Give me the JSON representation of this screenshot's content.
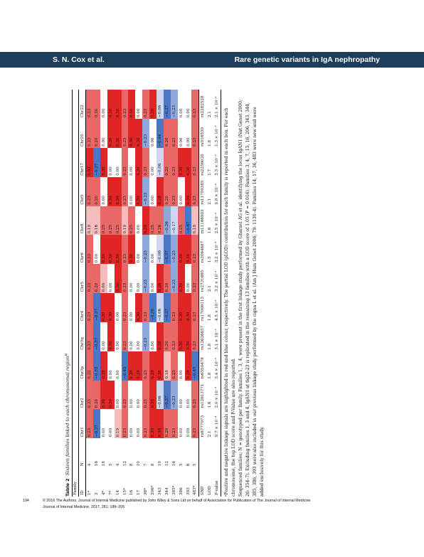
{
  "header": {
    "left": "S. N. Cox et al.",
    "right": "Rare genetic variants in IgA nephropathy"
  },
  "caption": {
    "label": "Table 2",
    "text": "Sixteen families linked to each chromosomal region",
    "sup": "a"
  },
  "table": {
    "family_label": "Family",
    "columns": [
      "ID",
      "N",
      "Chr1",
      "Chr2",
      "Chr3p",
      "Chr3q",
      "Chr4",
      "Chr5",
      "Chr6",
      "Chr8",
      "Chr9",
      "Chr17",
      "Chr20",
      "Chr22"
    ],
    "rows": [
      {
        "id": "1*",
        "n": "4",
        "v": [
          "0.23",
          "0.23",
          "0.22",
          "0.23",
          "0.23",
          "0.23",
          "0.23",
          "0.19",
          "0.23",
          "0.53",
          "0.23",
          "0.23"
        ]
      },
      {
        "id": "3",
        "n": "16",
        "v": [
          "−0.37",
          "0.20",
          "−0.32",
          "−0.37",
          "−0.37",
          "0.20",
          "0.00",
          "0.16",
          "0.20",
          "−0.37",
          "0.20",
          "0.20"
        ]
      },
      {
        "id": "4*",
        "n": "18",
        "v": [
          "0.00",
          "0.30",
          "0.28",
          "0.00",
          "0.30",
          "0.09",
          "0.30",
          "0.25",
          "0.00",
          "0.30",
          "0.00",
          "0.00"
        ]
      },
      {
        "id": "7*",
        "n": "5",
        "v": [
          "0.00",
          "0.30",
          "0.00",
          "0.30",
          "0.30",
          "0.00",
          "0.30",
          "0.25",
          "0.30",
          "0.00",
          "0.30",
          "0.30"
        ]
      },
      {
        "id": "14",
        "n": "4",
        "v": [
          "0.19",
          "0.00",
          "0.00",
          "0.00",
          "0.00",
          "0.30",
          "0.30",
          "0.25",
          "0.30",
          "0.00",
          "0.30",
          "0.30"
        ]
      },
      {
        "id": "15*",
        "n": "12",
        "v": [
          "0.23",
          "0.23",
          "−0.45",
          "0.23",
          "0.23",
          "0.23",
          "0.23",
          "0.19",
          "0.23",
          "0.23",
          "0.23",
          "0.23"
        ]
      },
      {
        "id": "16",
        "n": "8",
        "v": [
          "0.00",
          "0.00",
          "0.28",
          "0.00",
          "0.00",
          "0.00",
          "0.30",
          "0.25",
          "0.00",
          "0.00",
          "0.30",
          "0.30"
        ]
      },
      {
        "id": "17",
        "n": "10",
        "v": [
          "0.00",
          "0.00",
          "0.28",
          "0.00",
          "0.30",
          "0.00",
          "0.00",
          "0.00",
          "0.30",
          "0.30",
          "0.30",
          "0.00"
        ]
      },
      {
        "id": "36*",
        "n": "7",
        "v": [
          "0.23",
          "0.23",
          "0.23",
          "−0.23",
          "0.23",
          "−0.23",
          "−0.23",
          "0.29",
          "−0.23",
          "0.23",
          "−0.23",
          "0.23"
        ]
      },
      {
        "id": "206*",
        "n": "8",
        "v": [
          "0.30",
          "0.30",
          "0.28",
          "0.00",
          "−0.30",
          "0.00",
          "0.00",
          "0.25",
          "0.00",
          "0.00",
          "0.00",
          "0.30"
        ]
      },
      {
        "id": "343",
        "n": "10",
        "v": [
          "0.38",
          "−0.06",
          "0.38",
          "0.38",
          "−0.06",
          "0.28",
          "−0.06",
          "0.26",
          "0.28",
          "−0.06",
          "−0.44",
          "−0.06"
        ]
      },
      {
        "id": "344",
        "n": "12",
        "v": [
          "0.20",
          "−0.37",
          "0.18",
          "0.20",
          "−0.37",
          "0.20",
          "−0.37",
          "−0.26",
          "0.20",
          "0.20",
          "0.20",
          "−0.37"
        ]
      },
      {
        "id": "385*",
        "n": "16",
        "v": [
          "0.23",
          "−0.23",
          "0.23",
          "0.23",
          "0.23",
          "−0.23",
          "−0.23",
          "−0.17",
          "0.23",
          "0.23",
          "0.23",
          "−0.23"
        ]
      },
      {
        "id": "386",
        "n": "5",
        "v": [
          "0.00",
          "0.00",
          "0.00",
          "0.30",
          "0.30",
          "0.30",
          "0.30",
          "0.25",
          "0.00",
          "0.30",
          "0.00",
          "0.00"
        ]
      },
      {
        "id": "393",
        "n": "6",
        "v": [
          "0.00",
          "0.00",
          "0.28",
          "0.30",
          "0.30",
          "0.00",
          "0.30",
          "−0.67",
          "0.30",
          "0.30",
          "0.00",
          "0.00"
        ]
      },
      {
        "id": "483*",
        "n": "5",
        "v": [
          "0.23",
          "0.23",
          "−0.45",
          "0.23",
          "0.23",
          "0.23",
          "0.23",
          "0.19",
          "0.23",
          "0.23",
          "0.23",
          "0.23"
        ]
      }
    ],
    "snp": {
      "label": "SNP",
      "v": [
        "rs6777973",
        "rs12613771",
        "rs6550478",
        "rs12626857",
        "rs17006113",
        "rs2731665",
        "rs2064687",
        "rs11166903",
        "rs11799385",
        "rs2256020",
        "rs916539",
        "rs2282528"
      ]
    },
    "lod": {
      "label": "LOD",
      "v": [
        "2.1",
        "1.6",
        "1.8",
        "1.8",
        "1.8",
        "2.1",
        "1.5",
        "1.6",
        "2.1",
        "1.7",
        "1.8",
        "2.1"
      ]
    },
    "pvalue": {
      "label": "P-value",
      "v": [
        "9.7 × 10⁻⁴",
        "2.0 × 10⁻³",
        "3.4 × 10⁻³",
        "3.1 × 10⁻³",
        "4.5 × 10⁻³",
        "3.2 × 10⁻³",
        "3.2 × 10⁻³",
        "2.5 × 10⁻³",
        "9.8 × 10⁻⁴",
        "3.3 × 10⁻³",
        "1.3 × 10⁻³",
        "2.1 × 10⁻³"
      ]
    }
  },
  "colors": {
    "red_strong": "#e02525",
    "red_medium": "#ea6767",
    "red_light": "#f6bcbc",
    "blue_strong": "#4a78c6",
    "blue_medium": "#8fa8dc",
    "blue_light": "#cdd8f0"
  },
  "notes": [
    "ᵃPositive and negative linkage signals are highlighted in red and blue colour, respectively. The partial LOD (pLOD) contribution for each family is reported in each box. For each chromosome, the top LOD score and P-Value are also reported.",
    "Sequenced families; N = genotyped per family. Families 1, 3, 4, were present in the first linkage study performed by Gharavi AG et al. identifying the locus IgAN1 (Nat Genet 2000; 26: 354–7). Excluding families 1, 3 and 4, IgAN1 at 6q22-23 is replicated in the remaining 13 families with a LOD score of 1.05 (P = 0.016). Families 3, 4, 7, 15, 16, 206, 343, 344, 385, 386, 393 were also included in our previous linkage study performed by the cigna L et al. (Am J Hum Genet 2006; 79: 1130–4). Families 14, 17, 36, 483 were new and were added exclusively for this study."
  ],
  "footer": {
    "page": "194",
    "line1": "© 2016 The Authors. Journal of Internal Medicine published by John Wiley & Sons Ltd on behalf of Association for Publication of The Journal of Internal Medicine",
    "line2": "Journal of Internal Medicine, 2017, 281; 189–205"
  }
}
